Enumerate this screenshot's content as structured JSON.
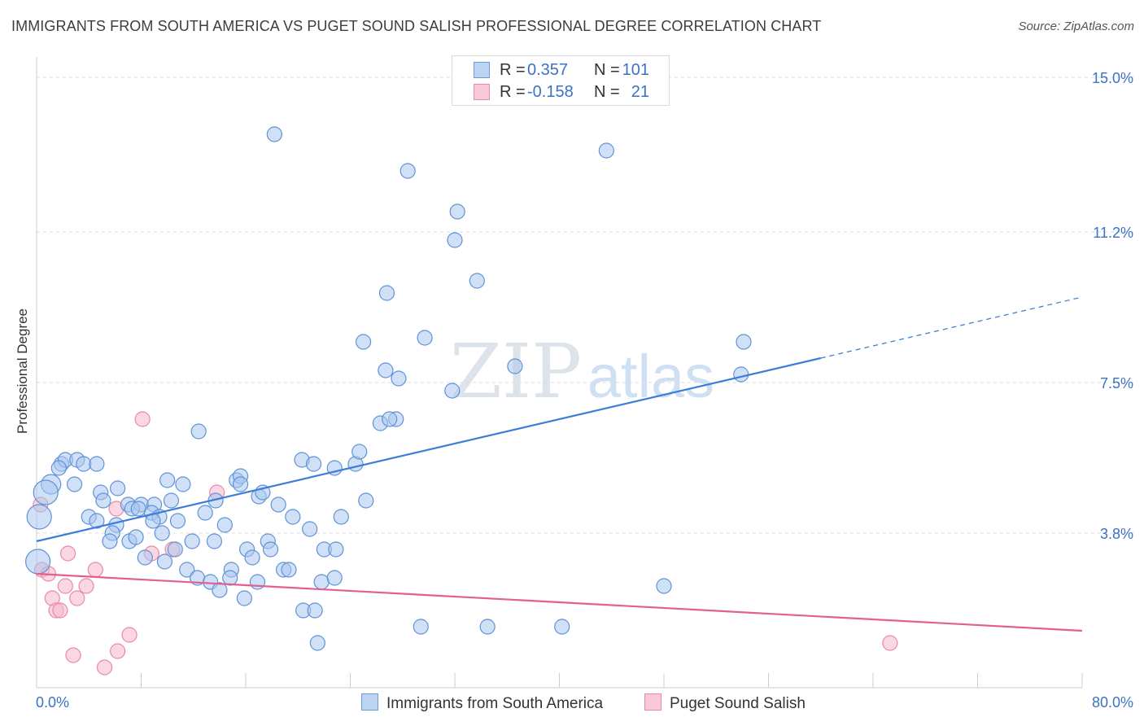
{
  "title": "IMMIGRANTS FROM SOUTH AMERICA VS PUGET SOUND SALISH PROFESSIONAL DEGREE CORRELATION CHART",
  "source": "Source: ZipAtlas.com",
  "watermark": {
    "zip": "ZIP",
    "atlas": "atlas"
  },
  "legend": {
    "series1": {
      "r_label": "R =",
      "r_value": "0.357",
      "n_label": "N =",
      "n_value": "101"
    },
    "series2": {
      "r_label": "R =",
      "r_value": "-0.158",
      "n_label": "N =",
      "n_value": "21"
    }
  },
  "chart_data": {
    "type": "scatter",
    "title": "IMMIGRANTS FROM SOUTH AMERICA VS PUGET SOUND SALISH PROFESSIONAL DEGREE CORRELATION CHART",
    "xlabel": "",
    "ylabel": "Professional Degree",
    "xlim": [
      0,
      80
    ],
    "ylim": [
      0,
      15.5
    ],
    "x_tick_labels": [
      "0.0%",
      "80.0%"
    ],
    "y_ticks": [
      3.8,
      7.5,
      11.2,
      15.0
    ],
    "y_tick_labels": [
      "3.8%",
      "7.5%",
      "11.2%",
      "15.0%"
    ],
    "grid": true,
    "colors": {
      "series1": "#3b7dd8",
      "series1_fill": "#a9c6ee",
      "series2": "#e2608f",
      "series2_fill": "#f5b6cc",
      "axis_label": "#3b72c4"
    },
    "series": [
      {
        "name": "Immigrants from South America",
        "r": 0.357,
        "n": 101,
        "trend": {
          "x0": 0,
          "y0": 3.6,
          "x1": 60,
          "y1": 8.1,
          "dash_to_x": 80,
          "dash_to_y": 9.6
        },
        "points": [
          {
            "x": 18.2,
            "y": 13.6
          },
          {
            "x": 43.6,
            "y": 13.2
          },
          {
            "x": 28.4,
            "y": 12.7
          },
          {
            "x": 32.2,
            "y": 11.7
          },
          {
            "x": 32.0,
            "y": 11.0
          },
          {
            "x": 33.7,
            "y": 10.0
          },
          {
            "x": 26.8,
            "y": 9.7
          },
          {
            "x": 25.0,
            "y": 8.5
          },
          {
            "x": 29.7,
            "y": 8.6
          },
          {
            "x": 54.1,
            "y": 8.5
          },
          {
            "x": 36.6,
            "y": 7.9
          },
          {
            "x": 26.7,
            "y": 7.8
          },
          {
            "x": 27.7,
            "y": 7.6
          },
          {
            "x": 53.9,
            "y": 7.7
          },
          {
            "x": 31.8,
            "y": 7.3
          },
          {
            "x": 26.3,
            "y": 6.5
          },
          {
            "x": 27.5,
            "y": 6.6
          },
          {
            "x": 12.4,
            "y": 6.3
          },
          {
            "x": 1.9,
            "y": 5.5
          },
          {
            "x": 2.2,
            "y": 5.6
          },
          {
            "x": 3.1,
            "y": 5.6
          },
          {
            "x": 3.6,
            "y": 5.5
          },
          {
            "x": 4.6,
            "y": 5.5
          },
          {
            "x": 20.3,
            "y": 5.6
          },
          {
            "x": 21.2,
            "y": 5.5
          },
          {
            "x": 22.8,
            "y": 5.4
          },
          {
            "x": 24.4,
            "y": 5.5
          },
          {
            "x": 24.7,
            "y": 5.8
          },
          {
            "x": 1.1,
            "y": 5.0
          },
          {
            "x": 2.9,
            "y": 5.0
          },
          {
            "x": 10.0,
            "y": 5.1
          },
          {
            "x": 11.2,
            "y": 5.0
          },
          {
            "x": 15.3,
            "y": 5.1
          },
          {
            "x": 15.6,
            "y": 5.2
          },
          {
            "x": 4.9,
            "y": 4.8
          },
          {
            "x": 6.2,
            "y": 4.9
          },
          {
            "x": 5.1,
            "y": 4.6
          },
          {
            "x": 0.7,
            "y": 4.8
          },
          {
            "x": 7.0,
            "y": 4.5
          },
          {
            "x": 8.0,
            "y": 4.5
          },
          {
            "x": 9.0,
            "y": 4.5
          },
          {
            "x": 10.3,
            "y": 4.6
          },
          {
            "x": 13.7,
            "y": 4.6
          },
          {
            "x": 17.0,
            "y": 4.7
          },
          {
            "x": 17.3,
            "y": 4.8
          },
          {
            "x": 18.5,
            "y": 4.5
          },
          {
            "x": 25.2,
            "y": 4.6
          },
          {
            "x": 7.3,
            "y": 4.4
          },
          {
            "x": 7.8,
            "y": 4.4
          },
          {
            "x": 8.8,
            "y": 4.3
          },
          {
            "x": 9.4,
            "y": 4.2
          },
          {
            "x": 12.9,
            "y": 4.3
          },
          {
            "x": 19.6,
            "y": 4.2
          },
          {
            "x": 4.0,
            "y": 4.2
          },
          {
            "x": 4.6,
            "y": 4.1
          },
          {
            "x": 6.1,
            "y": 4.0
          },
          {
            "x": 8.9,
            "y": 4.1
          },
          {
            "x": 10.8,
            "y": 4.1
          },
          {
            "x": 14.4,
            "y": 4.0
          },
          {
            "x": 20.9,
            "y": 3.9
          },
          {
            "x": 23.3,
            "y": 4.2
          },
          {
            "x": 0.2,
            "y": 4.2
          },
          {
            "x": 5.8,
            "y": 3.8
          },
          {
            "x": 5.6,
            "y": 3.6
          },
          {
            "x": 7.1,
            "y": 3.6
          },
          {
            "x": 7.6,
            "y": 3.7
          },
          {
            "x": 9.6,
            "y": 3.8
          },
          {
            "x": 11.9,
            "y": 3.6
          },
          {
            "x": 13.6,
            "y": 3.6
          },
          {
            "x": 16.1,
            "y": 3.4
          },
          {
            "x": 17.7,
            "y": 3.6
          },
          {
            "x": 17.9,
            "y": 3.4
          },
          {
            "x": 22.0,
            "y": 3.4
          },
          {
            "x": 22.9,
            "y": 3.4
          },
          {
            "x": 8.3,
            "y": 3.2
          },
          {
            "x": 9.8,
            "y": 3.1
          },
          {
            "x": 10.6,
            "y": 3.4
          },
          {
            "x": 16.5,
            "y": 3.2
          },
          {
            "x": 0.1,
            "y": 3.1
          },
          {
            "x": 11.5,
            "y": 2.9
          },
          {
            "x": 14.9,
            "y": 2.9
          },
          {
            "x": 18.9,
            "y": 2.9
          },
          {
            "x": 19.3,
            "y": 2.9
          },
          {
            "x": 12.3,
            "y": 2.7
          },
          {
            "x": 13.3,
            "y": 2.6
          },
          {
            "x": 14.8,
            "y": 2.7
          },
          {
            "x": 16.9,
            "y": 2.6
          },
          {
            "x": 21.8,
            "y": 2.6
          },
          {
            "x": 22.8,
            "y": 2.7
          },
          {
            "x": 14.0,
            "y": 2.4
          },
          {
            "x": 15.9,
            "y": 2.2
          },
          {
            "x": 48.0,
            "y": 2.5
          },
          {
            "x": 20.4,
            "y": 1.9
          },
          {
            "x": 21.3,
            "y": 1.9
          },
          {
            "x": 29.4,
            "y": 1.5
          },
          {
            "x": 34.5,
            "y": 1.5
          },
          {
            "x": 40.2,
            "y": 1.5
          },
          {
            "x": 21.5,
            "y": 1.1
          },
          {
            "x": 1.7,
            "y": 5.4
          },
          {
            "x": 15.6,
            "y": 5.0
          },
          {
            "x": 27.0,
            "y": 6.6
          }
        ]
      },
      {
        "name": "Puget Sound Salish",
        "r": -0.158,
        "n": 21,
        "trend": {
          "x0": 0,
          "y0": 2.8,
          "x1": 80,
          "y1": 1.4
        },
        "points": [
          {
            "x": 8.1,
            "y": 6.6
          },
          {
            "x": 13.8,
            "y": 4.8
          },
          {
            "x": 0.3,
            "y": 4.5
          },
          {
            "x": 6.1,
            "y": 4.4
          },
          {
            "x": 10.4,
            "y": 3.4
          },
          {
            "x": 8.8,
            "y": 3.3
          },
          {
            "x": 2.4,
            "y": 3.3
          },
          {
            "x": 0.4,
            "y": 2.9
          },
          {
            "x": 0.9,
            "y": 2.8
          },
          {
            "x": 4.5,
            "y": 2.9
          },
          {
            "x": 2.2,
            "y": 2.5
          },
          {
            "x": 3.8,
            "y": 2.5
          },
          {
            "x": 1.2,
            "y": 2.2
          },
          {
            "x": 3.1,
            "y": 2.2
          },
          {
            "x": 1.5,
            "y": 1.9
          },
          {
            "x": 1.8,
            "y": 1.9
          },
          {
            "x": 7.1,
            "y": 1.3
          },
          {
            "x": 6.2,
            "y": 0.9
          },
          {
            "x": 2.8,
            "y": 0.8
          },
          {
            "x": 5.2,
            "y": 0.5
          },
          {
            "x": 65.3,
            "y": 1.1
          }
        ]
      }
    ]
  }
}
